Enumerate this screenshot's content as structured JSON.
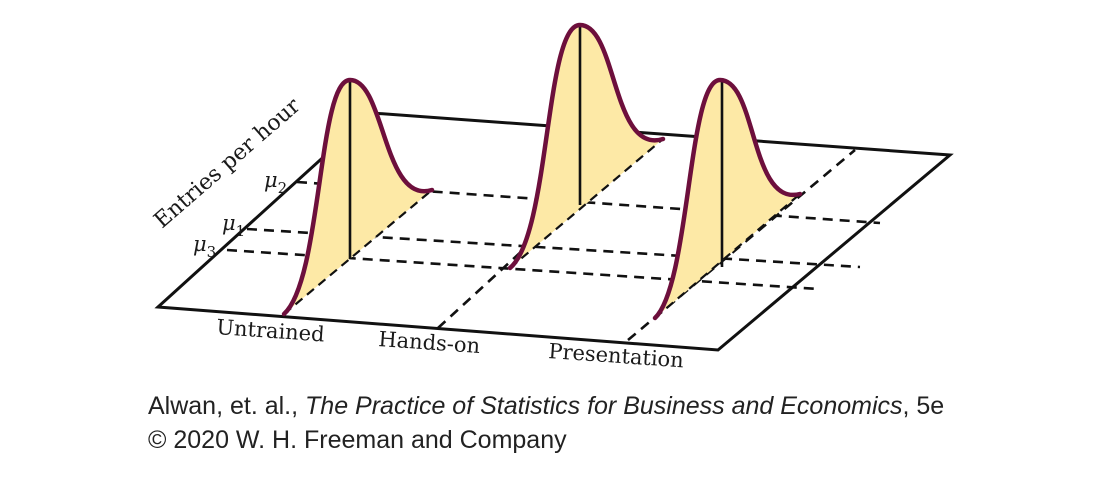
{
  "figure": {
    "axis_label": "Entries per hour",
    "mean_labels": [
      {
        "symbol": "μ",
        "subscript": "2"
      },
      {
        "symbol": "μ",
        "subscript": "1"
      },
      {
        "symbol": "μ",
        "subscript": "3"
      }
    ],
    "groups": [
      "Untrained",
      "Hands-on",
      "Presentation"
    ],
    "colors": {
      "curve": "#6d0f3c",
      "fill": "#fde9a6",
      "line": "#111111"
    }
  },
  "credit": {
    "authors": "Alwan, et. al., ",
    "book_title": "The Practice of Statistics for Business and Economics",
    "edition": ", 5e",
    "copyright": "© 2020 W. H. Freeman and Company"
  }
}
